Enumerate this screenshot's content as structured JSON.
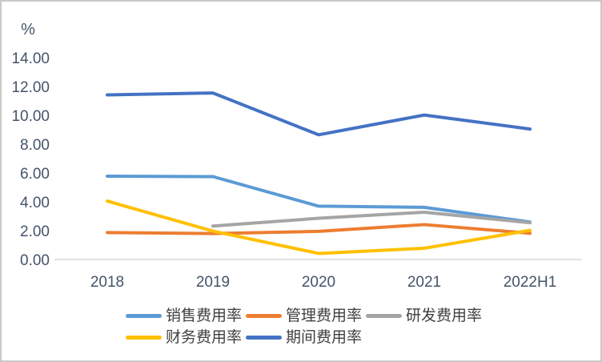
{
  "page": {
    "background_color": "#ffffff",
    "frame_border_color": "#c9c9c9"
  },
  "chart_data": {
    "type": "line",
    "title": "",
    "ylabel": "%",
    "xlabel": "",
    "categories": [
      "2018",
      "2019",
      "2020",
      "2021",
      "2022H1"
    ],
    "y_ticks": [
      "0.00",
      "2.00",
      "4.00",
      "6.00",
      "8.00",
      "10.00",
      "12.00",
      "14.00"
    ],
    "ylim": [
      0,
      14
    ],
    "grid": false,
    "legend_position": "bottom",
    "axis_text_color": "#44546A",
    "legend_text_color": "#404040",
    "axis_line_color": "#d9d9d9",
    "series": [
      {
        "name": "销售费用率",
        "color": "#5B9BD5",
        "values": [
          5.78,
          5.75,
          3.7,
          3.62,
          2.6
        ]
      },
      {
        "name": "管理费用率",
        "color": "#ED7D31",
        "values": [
          1.87,
          1.8,
          1.95,
          2.42,
          1.82
        ]
      },
      {
        "name": "研发费用率",
        "color": "#A5A5A5",
        "values": [
          null,
          2.32,
          2.86,
          3.28,
          2.55
        ]
      },
      {
        "name": "财务费用率",
        "color": "#FFC000",
        "values": [
          4.05,
          1.97,
          0.42,
          0.78,
          2.02
        ]
      },
      {
        "name": "期间费用率",
        "color": "#4472C4",
        "values": [
          11.42,
          11.55,
          8.65,
          10.02,
          9.05
        ]
      }
    ],
    "legend_rows": [
      3,
      2
    ]
  }
}
